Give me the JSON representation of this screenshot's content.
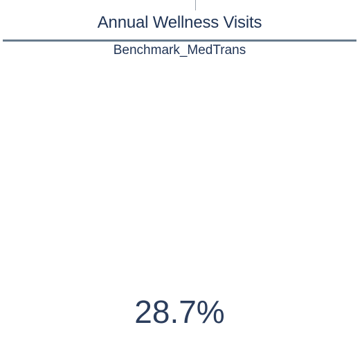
{
  "card": {
    "title": "Annual Wellness Visits",
    "subtitle": "Benchmark_MedTrans",
    "value": "28.7%"
  },
  "colors": {
    "text": "#1f3354",
    "divider": "#687b8c",
    "background": "#ffffff"
  }
}
